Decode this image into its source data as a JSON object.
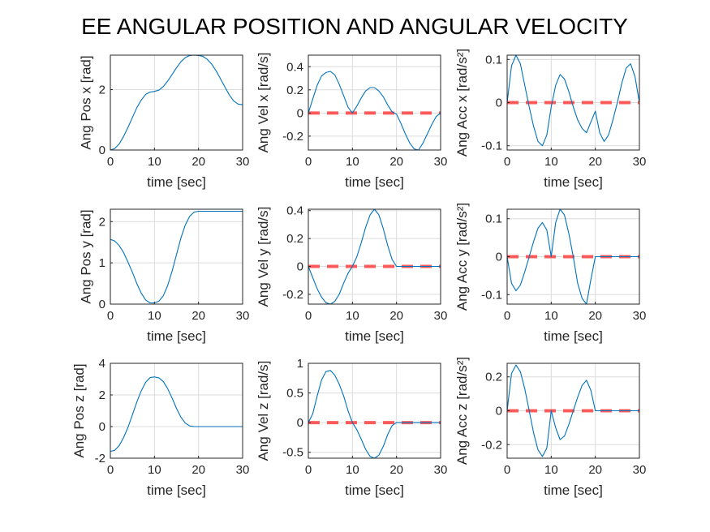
{
  "figure_title": "EE ANGULAR POSITION AND ANGULAR VELOCITY",
  "colors": {
    "series": "#0072BD",
    "reference": "#FF4040",
    "grid": "#dcdcdc",
    "axes": "#262626"
  },
  "chart_data": [
    {
      "type": "line",
      "xlabel": "time [sec]",
      "ylabel": "Ang Pos x [rad]",
      "xlim": [
        0,
        30
      ],
      "ylim": [
        0,
        3.14
      ],
      "xticks": [
        0,
        10,
        20,
        30
      ],
      "yticks": [
        0,
        2
      ],
      "grid": true,
      "reference": null,
      "series": [
        {
          "x": [
            0,
            1,
            2,
            3,
            4,
            5,
            6,
            7,
            8,
            9,
            10,
            11,
            12,
            13,
            14,
            15,
            16,
            17,
            18,
            19,
            20,
            21,
            22,
            23,
            24,
            25,
            26,
            27,
            28,
            29,
            30
          ],
          "y": [
            0.0,
            0.05,
            0.2,
            0.45,
            0.75,
            1.08,
            1.4,
            1.65,
            1.84,
            1.92,
            1.94,
            1.98,
            2.1,
            2.28,
            2.5,
            2.72,
            2.92,
            3.06,
            3.13,
            3.14,
            3.13,
            3.1,
            3.0,
            2.84,
            2.62,
            2.35,
            2.08,
            1.82,
            1.62,
            1.52,
            1.5
          ]
        }
      ]
    },
    {
      "type": "line",
      "xlabel": "time [sec]",
      "ylabel": "Ang Vel x [rad/s]",
      "xlim": [
        0,
        30
      ],
      "ylim": [
        -0.32,
        0.5
      ],
      "xticks": [
        0,
        10,
        20,
        30
      ],
      "yticks": [
        -0.2,
        0,
        0.2,
        0.4
      ],
      "grid": true,
      "reference": 0,
      "series": [
        {
          "x": [
            0,
            1,
            2,
            3,
            4,
            5,
            6,
            7,
            8,
            9,
            10,
            11,
            12,
            13,
            14,
            15,
            16,
            17,
            18,
            19,
            20,
            21,
            22,
            23,
            24,
            25,
            26,
            27,
            28,
            29,
            30
          ],
          "y": [
            0.0,
            0.12,
            0.24,
            0.32,
            0.35,
            0.36,
            0.33,
            0.25,
            0.15,
            0.05,
            0.0,
            0.06,
            0.13,
            0.19,
            0.22,
            0.22,
            0.19,
            0.14,
            0.07,
            0.01,
            -0.01,
            -0.09,
            -0.18,
            -0.26,
            -0.31,
            -0.32,
            -0.26,
            -0.18,
            -0.1,
            -0.03,
            0.0
          ]
        }
      ]
    },
    {
      "type": "line",
      "xlabel": "time [sec]",
      "ylabel": "Ang Acc x [rad/s²]",
      "xlim": [
        0,
        30
      ],
      "ylim": [
        -0.11,
        0.11
      ],
      "xticks": [
        0,
        10,
        20,
        30
      ],
      "yticks": [
        -0.1,
        0,
        0.1
      ],
      "grid": true,
      "reference": 0,
      "series": [
        {
          "x": [
            0,
            1,
            2,
            3,
            4,
            5,
            6,
            7,
            8,
            9,
            10,
            11,
            12,
            13,
            14,
            15,
            16,
            17,
            18,
            19,
            20,
            21,
            22,
            23,
            24,
            25,
            26,
            27,
            28,
            29,
            30
          ],
          "y": [
            0.0,
            0.085,
            0.11,
            0.09,
            0.04,
            -0.01,
            -0.055,
            -0.09,
            -0.1,
            -0.075,
            -0.01,
            0.04,
            0.065,
            0.055,
            0.025,
            -0.01,
            -0.04,
            -0.06,
            -0.07,
            -0.045,
            -0.02,
            -0.07,
            -0.09,
            -0.075,
            -0.04,
            0.0,
            0.045,
            0.08,
            0.09,
            0.06,
            0.0
          ]
        }
      ]
    },
    {
      "type": "line",
      "xlabel": "time [sec]",
      "ylabel": "Ang Pos y [rad]",
      "xlim": [
        0,
        30
      ],
      "ylim": [
        0,
        2.3
      ],
      "xticks": [
        0,
        10,
        20,
        30
      ],
      "yticks": [
        0,
        1,
        2
      ],
      "grid": true,
      "reference": null,
      "series": [
        {
          "x": [
            0,
            1,
            2,
            3,
            4,
            5,
            6,
            7,
            8,
            9,
            10,
            11,
            12,
            13,
            14,
            15,
            16,
            17,
            18,
            19,
            20,
            21,
            22,
            23,
            24,
            25,
            26,
            27,
            28,
            29,
            30
          ],
          "y": [
            1.57,
            1.53,
            1.42,
            1.25,
            1.02,
            0.77,
            0.5,
            0.27,
            0.1,
            0.03,
            0.03,
            0.07,
            0.2,
            0.45,
            0.8,
            1.2,
            1.6,
            1.92,
            2.13,
            2.23,
            2.25,
            2.25,
            2.25,
            2.25,
            2.25,
            2.25,
            2.25,
            2.25,
            2.25,
            2.25,
            2.25
          ]
        }
      ]
    },
    {
      "type": "line",
      "xlabel": "time [sec]",
      "ylabel": "Ang Vel y [rad/s]",
      "xlim": [
        0,
        30
      ],
      "ylim": [
        -0.27,
        0.41
      ],
      "xticks": [
        0,
        10,
        20,
        30
      ],
      "yticks": [
        -0.2,
        0,
        0.2,
        0.4
      ],
      "grid": true,
      "reference": 0,
      "series": [
        {
          "x": [
            0,
            1,
            2,
            3,
            4,
            5,
            6,
            7,
            8,
            9,
            10,
            11,
            12,
            13,
            14,
            15,
            16,
            17,
            18,
            19,
            20,
            21,
            22,
            23,
            24,
            25,
            26,
            27,
            28,
            29,
            30
          ],
          "y": [
            0.0,
            -0.08,
            -0.16,
            -0.22,
            -0.26,
            -0.27,
            -0.25,
            -0.2,
            -0.12,
            -0.05,
            0.0,
            0.07,
            0.17,
            0.28,
            0.37,
            0.41,
            0.37,
            0.27,
            0.15,
            0.05,
            0.0,
            0.0,
            0.0,
            0.0,
            0.0,
            0.0,
            0.0,
            0.0,
            0.0,
            0.0,
            0.0
          ]
        }
      ]
    },
    {
      "type": "line",
      "xlabel": "time [sec]",
      "ylabel": "Ang Acc y [rad/s²]",
      "xlim": [
        0,
        30
      ],
      "ylim": [
        -0.125,
        0.125
      ],
      "xticks": [
        0,
        10,
        20,
        30
      ],
      "yticks": [
        -0.1,
        0,
        0.1
      ],
      "grid": true,
      "reference": 0,
      "series": [
        {
          "x": [
            0,
            1,
            2,
            3,
            4,
            5,
            6,
            7,
            8,
            9,
            10,
            11,
            12,
            13,
            14,
            15,
            16,
            17,
            18,
            19,
            20,
            21,
            22,
            23,
            24,
            25,
            26,
            27,
            28,
            29,
            30
          ],
          "y": [
            0.0,
            -0.07,
            -0.09,
            -0.075,
            -0.04,
            0.0,
            0.04,
            0.075,
            0.09,
            0.07,
            0.0,
            0.09,
            0.125,
            0.11,
            0.06,
            0.0,
            -0.07,
            -0.11,
            -0.125,
            -0.06,
            0.0,
            0.0,
            0.0,
            0.0,
            0.0,
            0.0,
            0.0,
            0.0,
            0.0,
            0.0,
            0.0
          ]
        }
      ]
    },
    {
      "type": "line",
      "xlabel": "time [sec]",
      "ylabel": "Ang Pos z [rad]",
      "xlim": [
        0,
        30
      ],
      "ylim": [
        -2,
        4
      ],
      "xticks": [
        0,
        10,
        20,
        30
      ],
      "yticks": [
        -2,
        0,
        2,
        4
      ],
      "grid": true,
      "reference": null,
      "series": [
        {
          "x": [
            0,
            1,
            2,
            3,
            4,
            5,
            6,
            7,
            8,
            9,
            10,
            11,
            12,
            13,
            14,
            15,
            16,
            17,
            18,
            19,
            20,
            21,
            22,
            23,
            24,
            25,
            26,
            27,
            28,
            29,
            30
          ],
          "y": [
            -1.57,
            -1.5,
            -1.2,
            -0.7,
            -0.05,
            0.75,
            1.55,
            2.25,
            2.8,
            3.1,
            3.14,
            3.08,
            2.85,
            2.4,
            1.8,
            1.15,
            0.6,
            0.22,
            0.04,
            0.0,
            0.0,
            0.0,
            0.0,
            0.0,
            0.0,
            0.0,
            0.0,
            0.0,
            0.0,
            0.0,
            0.0
          ]
        }
      ]
    },
    {
      "type": "line",
      "xlabel": "time [sec]",
      "ylabel": "Ang Vel z [rad/s]",
      "xlim": [
        0,
        30
      ],
      "ylim": [
        -0.6,
        1
      ],
      "xticks": [
        0,
        10,
        20,
        30
      ],
      "yticks": [
        -0.5,
        0,
        0.5,
        1
      ],
      "grid": true,
      "reference": 0,
      "series": [
        {
          "x": [
            0,
            1,
            2,
            3,
            4,
            5,
            6,
            7,
            8,
            9,
            10,
            11,
            12,
            13,
            14,
            15,
            16,
            17,
            18,
            19,
            20,
            21,
            22,
            23,
            24,
            25,
            26,
            27,
            28,
            29,
            30
          ],
          "y": [
            0.0,
            0.15,
            0.45,
            0.72,
            0.86,
            0.88,
            0.8,
            0.65,
            0.45,
            0.2,
            0.0,
            -0.12,
            -0.28,
            -0.45,
            -0.57,
            -0.6,
            -0.55,
            -0.4,
            -0.2,
            -0.05,
            0.0,
            0.0,
            0.0,
            0.0,
            0.0,
            0.0,
            0.0,
            0.0,
            0.0,
            0.0,
            0.0
          ]
        }
      ]
    },
    {
      "type": "line",
      "xlabel": "time [sec]",
      "ylabel": "Ang Acc z [rad/s²]",
      "xlim": [
        0,
        30
      ],
      "ylim": [
        -0.28,
        0.28
      ],
      "xticks": [
        0,
        10,
        20,
        30
      ],
      "yticks": [
        -0.2,
        0,
        0.2
      ],
      "grid": true,
      "reference": 0,
      "series": [
        {
          "x": [
            0,
            1,
            2,
            3,
            4,
            5,
            6,
            7,
            8,
            9,
            10,
            11,
            12,
            13,
            14,
            15,
            16,
            17,
            18,
            19,
            20,
            21,
            22,
            23,
            24,
            25,
            26,
            27,
            28,
            29,
            30
          ],
          "y": [
            0.0,
            0.22,
            0.27,
            0.23,
            0.13,
            0.0,
            -0.13,
            -0.23,
            -0.27,
            -0.22,
            0.0,
            -0.1,
            -0.17,
            -0.15,
            -0.08,
            0.0,
            0.08,
            0.15,
            0.18,
            0.12,
            0.0,
            0.0,
            0.0,
            0.0,
            0.0,
            0.0,
            0.0,
            0.0,
            0.0,
            0.0,
            0.0
          ]
        }
      ]
    }
  ]
}
